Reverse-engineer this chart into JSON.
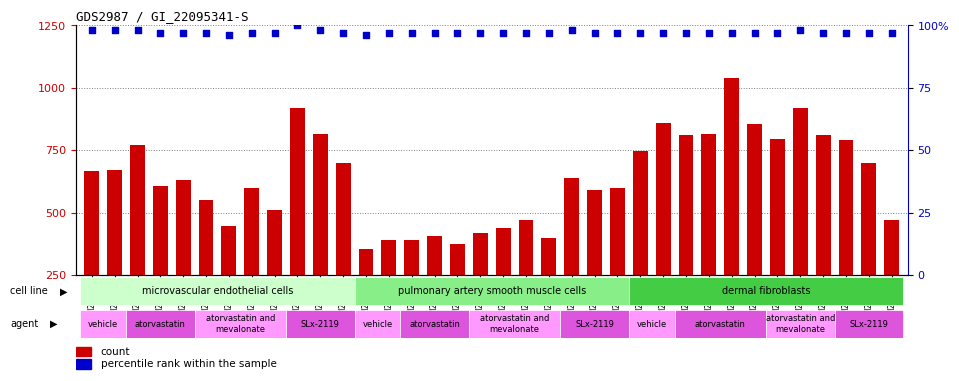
{
  "title": "GDS2987 / GI_22095341-S",
  "samples": [
    "GSM214810",
    "GSM215244",
    "GSM215253",
    "GSM215254",
    "GSM215282",
    "GSM215344",
    "GSM215283",
    "GSM215284",
    "GSM215293",
    "GSM215294",
    "GSM215295",
    "GSM215296",
    "GSM215297",
    "GSM215298",
    "GSM215310",
    "GSM215311",
    "GSM215312",
    "GSM215313",
    "GSM215324",
    "GSM215325",
    "GSM215326",
    "GSM215327",
    "GSM215328",
    "GSM215329",
    "GSM215330",
    "GSM215331",
    "GSM215332",
    "GSM215333",
    "GSM215334",
    "GSM215335",
    "GSM215336",
    "GSM215337",
    "GSM215338",
    "GSM215339",
    "GSM215340",
    "GSM215341"
  ],
  "counts": [
    665,
    670,
    770,
    605,
    630,
    550,
    445,
    600,
    510,
    920,
    815,
    700,
    355,
    390,
    390,
    405,
    375,
    420,
    440,
    470,
    400,
    640,
    590,
    600,
    745,
    860,
    810,
    815,
    1040,
    855,
    795,
    920,
    810,
    790,
    700,
    470
  ],
  "percentile_ranks": [
    98,
    98,
    98,
    97,
    97,
    97,
    96,
    97,
    97,
    100,
    98,
    97,
    96,
    97,
    97,
    97,
    97,
    97,
    97,
    97,
    97,
    98,
    97,
    97,
    97,
    97,
    97,
    97,
    97,
    97,
    97,
    98,
    97,
    97,
    97,
    97
  ],
  "bar_color": "#cc0000",
  "dot_color": "#0000cc",
  "ylim_left": [
    250,
    1250
  ],
  "yticks_left": [
    250,
    500,
    750,
    1000,
    1250
  ],
  "ylim_right": [
    0,
    100
  ],
  "yticks_right": [
    0,
    25,
    50,
    75,
    100
  ],
  "cell_line_groups": [
    {
      "label": "microvascular endothelial cells",
      "start": 0,
      "end": 12,
      "color": "#ccffcc"
    },
    {
      "label": "pulmonary artery smooth muscle cells",
      "start": 12,
      "end": 24,
      "color": "#88ee88"
    },
    {
      "label": "dermal fibroblasts",
      "start": 24,
      "end": 36,
      "color": "#44cc44"
    }
  ],
  "agent_groups": [
    {
      "label": "vehicle",
      "start": 0,
      "end": 2,
      "color": "#ff99ff"
    },
    {
      "label": "atorvastatin",
      "start": 2,
      "end": 5,
      "color": "#dd55dd"
    },
    {
      "label": "atorvastatin and\nmevalonate",
      "start": 5,
      "end": 9,
      "color": "#ff99ff"
    },
    {
      "label": "SLx-2119",
      "start": 9,
      "end": 12,
      "color": "#dd55dd"
    },
    {
      "label": "vehicle",
      "start": 12,
      "end": 14,
      "color": "#ff99ff"
    },
    {
      "label": "atorvastatin",
      "start": 14,
      "end": 17,
      "color": "#dd55dd"
    },
    {
      "label": "atorvastatin and\nmevalonate",
      "start": 17,
      "end": 21,
      "color": "#ff99ff"
    },
    {
      "label": "SLx-2119",
      "start": 21,
      "end": 24,
      "color": "#dd55dd"
    },
    {
      "label": "vehicle",
      "start": 24,
      "end": 26,
      "color": "#ff99ff"
    },
    {
      "label": "atorvastatin",
      "start": 26,
      "end": 30,
      "color": "#dd55dd"
    },
    {
      "label": "atorvastatin and\nmevalonate",
      "start": 30,
      "end": 33,
      "color": "#ff99ff"
    },
    {
      "label": "SLx-2119",
      "start": 33,
      "end": 36,
      "color": "#dd55dd"
    }
  ],
  "legend_count_color": "#cc0000",
  "legend_pct_color": "#0000cc",
  "bg_color": "#ffffff",
  "axis_color_left": "#cc0000",
  "axis_color_right": "#0000cc"
}
